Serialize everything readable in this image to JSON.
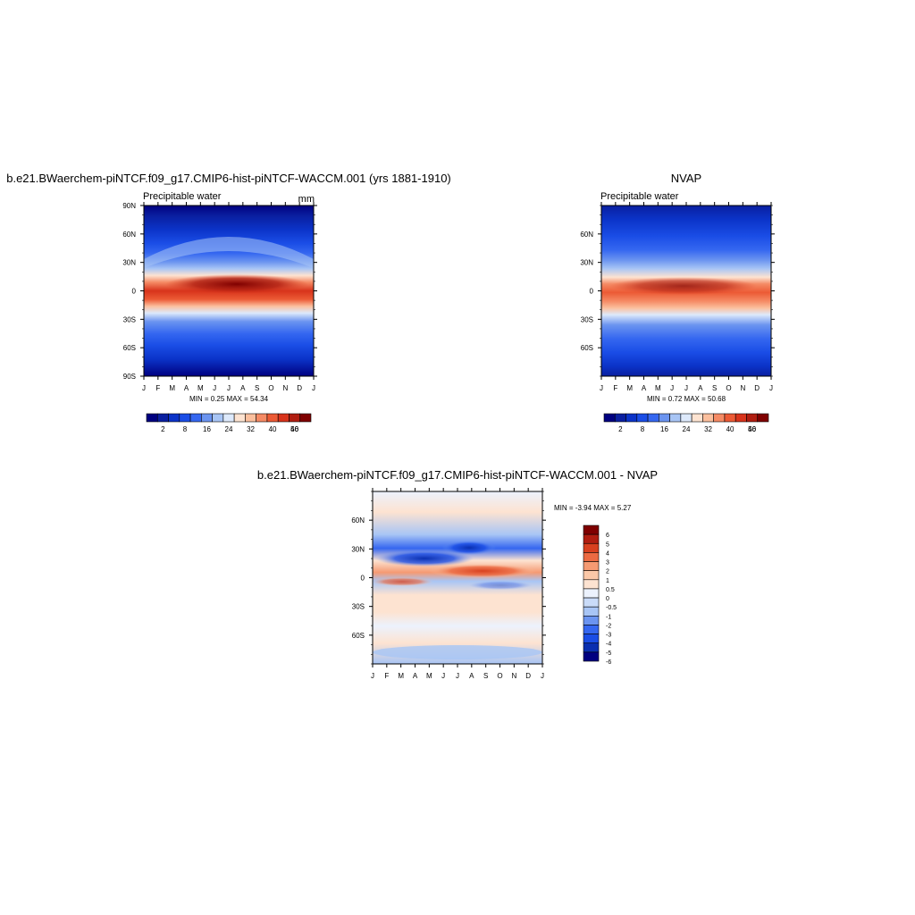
{
  "panels": [
    {
      "id": "model",
      "title": "b.e21.BWaerchem-piNTCF.f09_g17.CMIP6-hist-piNTCF-WACCM.001 (yrs 1881-1910)",
      "subtitle_left": "Precipitable water",
      "subtitle_right": "mm",
      "minmax": "MIN =   0.25 MAX =  54.34",
      "yticks": [
        "90N",
        "60N",
        "30N",
        "0",
        "30S",
        "60S",
        "90S"
      ],
      "xticks": [
        "J",
        "F",
        "M",
        "A",
        "M",
        "J",
        "J",
        "A",
        "S",
        "O",
        "N",
        "D",
        "J"
      ],
      "colorbar_labels": [
        "2",
        "8",
        "16",
        "24",
        "32",
        "40",
        "46",
        "50"
      ]
    },
    {
      "id": "obs",
      "title": "NVAP",
      "subtitle_left": "Precipitable water",
      "subtitle_right": "",
      "minmax": "MIN =   0.72 MAX =  50.68",
      "yticks": [
        "60N",
        "30N",
        "0",
        "30S",
        "60S"
      ],
      "xticks": [
        "J",
        "F",
        "M",
        "A",
        "M",
        "J",
        "J",
        "A",
        "S",
        "O",
        "N",
        "D",
        "J"
      ],
      "colorbar_labels": [
        "2",
        "8",
        "16",
        "24",
        "32",
        "40",
        "46",
        "50"
      ]
    },
    {
      "id": "diff",
      "title": "b.e21.BWaerchem-piNTCF.f09_g17.CMIP6-hist-piNTCF-WACCM.001 - NVAP",
      "minmax": "MIN =  -3.94 MAX =    5.27",
      "yticks": [
        "60N",
        "30N",
        "0",
        "30S",
        "60S"
      ],
      "xticks": [
        "J",
        "F",
        "M",
        "A",
        "M",
        "J",
        "J",
        "A",
        "S",
        "O",
        "N",
        "D",
        "J"
      ],
      "colorbar_labels": [
        "6",
        "5",
        "4",
        "3",
        "2",
        "1",
        "0.5",
        "0",
        "-0.5",
        "-1",
        "-2",
        "-3",
        "-4",
        "-5",
        "-6"
      ]
    }
  ],
  "chart_data": [
    {
      "type": "heatmap",
      "title": "b.e21.BWaerchem-piNTCF.f09_g17.CMIP6-hist-piNTCF-WACCM.001 (yrs 1881-1910)",
      "variable": "Precipitable water",
      "units": "mm",
      "x": [
        "J",
        "F",
        "M",
        "A",
        "M",
        "J",
        "J",
        "A",
        "S",
        "O",
        "N",
        "D",
        "J"
      ],
      "y_range": [
        -90,
        90
      ],
      "min": 0.25,
      "max": 54.34,
      "contour_levels": [
        2,
        4,
        6,
        8,
        10,
        12,
        14,
        16,
        18,
        20,
        22,
        24,
        26,
        28,
        30,
        32,
        34,
        36,
        38,
        40,
        42,
        44,
        46,
        48,
        50
      ],
      "colormap": [
        "#000080",
        "#0a1fa0",
        "#0b33c8",
        "#1a4de6",
        "#3567f0",
        "#6b94f0",
        "#a8c5f5",
        "#dde9fb",
        "#fde3d1",
        "#fbbf9d",
        "#f58a64",
        "#ec5a35",
        "#d8331b",
        "#b01d10",
        "#7f0000"
      ]
    },
    {
      "type": "heatmap",
      "title": "NVAP",
      "variable": "Precipitable water",
      "x": [
        "J",
        "F",
        "M",
        "A",
        "M",
        "J",
        "J",
        "A",
        "S",
        "O",
        "N",
        "D",
        "J"
      ],
      "y_range": [
        -80,
        80
      ],
      "min": 0.72,
      "max": 50.68,
      "contour_levels": [
        2,
        4,
        6,
        8,
        10,
        12,
        14,
        16,
        18,
        20,
        22,
        24,
        26,
        28,
        30,
        32,
        34,
        36,
        38,
        40,
        42,
        44,
        46,
        48,
        50
      ],
      "colormap": [
        "#000080",
        "#0a1fa0",
        "#0b33c8",
        "#1a4de6",
        "#3567f0",
        "#6b94f0",
        "#a8c5f5",
        "#dde9fb",
        "#fde3d1",
        "#fbbf9d",
        "#f58a64",
        "#ec5a35",
        "#d8331b",
        "#b01d10",
        "#7f0000"
      ]
    },
    {
      "type": "heatmap",
      "title": "b.e21.BWaerchem-piNTCF.f09_g17.CMIP6-hist-piNTCF-WACCM.001 - NVAP",
      "x": [
        "J",
        "F",
        "M",
        "A",
        "M",
        "J",
        "J",
        "A",
        "S",
        "O",
        "N",
        "D",
        "J"
      ],
      "y_range": [
        -80,
        80
      ],
      "min": -3.94,
      "max": 5.27,
      "contour_levels": [
        -6,
        -5,
        -4,
        -3,
        -2,
        -1,
        -0.5,
        0,
        0.5,
        1,
        2,
        3,
        4,
        5,
        6
      ],
      "colormap": [
        "#000080",
        "#0a2fb0",
        "#1a4de6",
        "#3567f0",
        "#6b94f0",
        "#a8c5f5",
        "#c9dbf8",
        "#ecf2fd",
        "#fde3d1",
        "#fbc8a8",
        "#f59a72",
        "#ec6a42",
        "#d8401f",
        "#b01d10",
        "#7f0000"
      ]
    }
  ]
}
